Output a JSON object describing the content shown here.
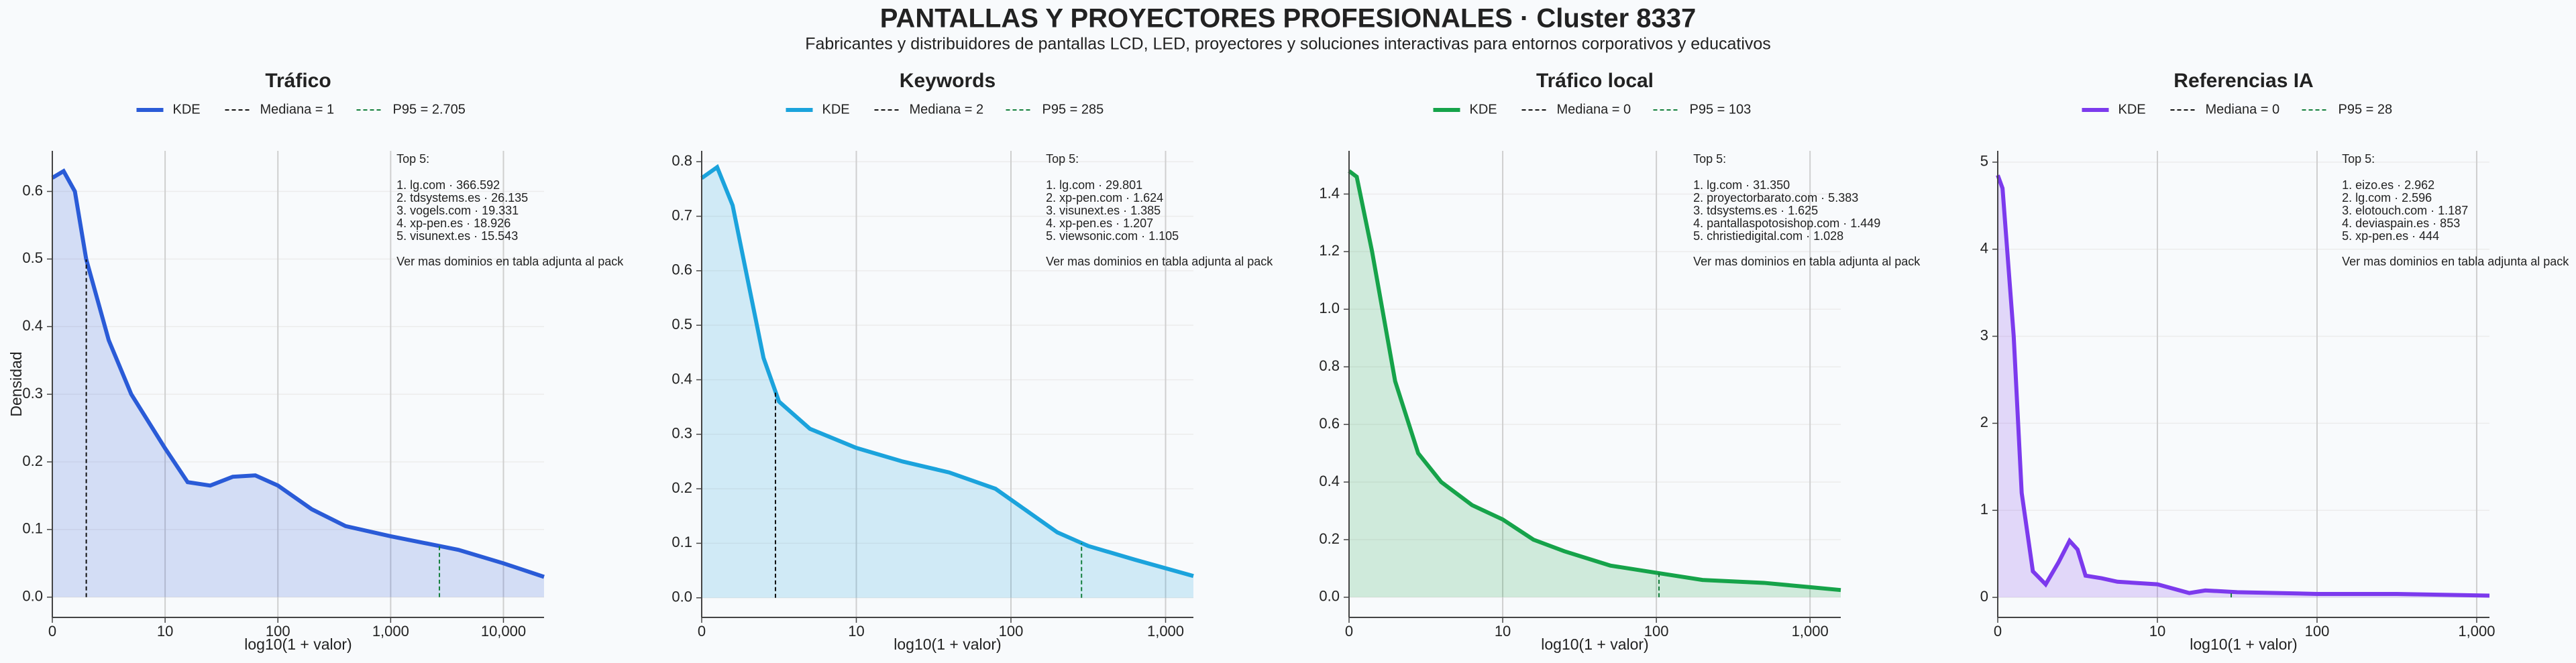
{
  "title": "PANTALLAS Y PROYECTORES PROFESIONALES · Cluster 8337",
  "subtitle": "Fabricantes y distribuidores de pantallas LCD, LED, proyectores y soluciones interactivas para entornos corporativos y educativos",
  "chart_data": [
    {
      "type": "area",
      "title": "Tráfico",
      "xlabel": "log10(1 + valor)",
      "ylabel": "Densidad",
      "x": [
        0,
        0.1,
        0.2,
        0.3,
        0.5,
        0.7,
        1,
        1.2,
        1.4,
        1.6,
        1.8,
        2,
        2.3,
        2.6,
        3,
        3.3,
        3.6,
        4,
        4.36
      ],
      "series": [
        {
          "name": "KDE",
          "color": "#2a5bd7",
          "values": [
            0.62,
            0.63,
            0.6,
            0.5,
            0.38,
            0.3,
            0.22,
            0.17,
            0.165,
            0.178,
            0.18,
            0.165,
            0.13,
            0.105,
            0.09,
            0.08,
            0.07,
            0.05,
            0.03
          ]
        }
      ],
      "median": 1,
      "median_label": "Mediana = 1",
      "p95": 2705,
      "p95_label": "P95 = 2.705",
      "xlim": [
        0,
        4.36
      ],
      "ylim": [
        -0.03,
        0.66
      ],
      "xticks": [
        {
          "value": 0,
          "label": "0"
        },
        {
          "value": 1,
          "label": "10"
        },
        {
          "value": 2,
          "label": "100"
        },
        {
          "value": 3,
          "label": "1,000"
        },
        {
          "value": 4,
          "label": "10,000"
        }
      ],
      "yticks": [
        {
          "value": 0,
          "label": "0.0"
        },
        0.1,
        0.2,
        0.3,
        0.4,
        0.5,
        0.6
      ],
      "annotation": {
        "title": "Top 5:",
        "lines": [
          "1. lg.com · 366.592",
          "2. tdsystems.es · 26.135",
          "3. vogels.com · 19.331",
          "4. xp-pen.es · 18.926",
          "5. visunext.es · 15.543"
        ],
        "note": "Ver mas dominios en tabla adjunta al pack"
      }
    },
    {
      "type": "area",
      "title": "Keywords",
      "xlabel": "log10(1 + valor)",
      "x": [
        0,
        0.1,
        0.2,
        0.3,
        0.4,
        0.5,
        0.7,
        1,
        1.3,
        1.6,
        1.9,
        2.1,
        2.3,
        2.5,
        2.8,
        3.18
      ],
      "series": [
        {
          "name": "KDE",
          "color": "#1ba3dc",
          "values": [
            0.77,
            0.79,
            0.72,
            0.58,
            0.44,
            0.36,
            0.31,
            0.275,
            0.25,
            0.23,
            0.2,
            0.16,
            0.12,
            0.095,
            0.07,
            0.04
          ]
        }
      ],
      "median": 2,
      "median_label": "Mediana = 2",
      "p95": 285,
      "p95_label": "P95 = 285",
      "xlim": [
        0,
        3.18
      ],
      "ylim": [
        -0.036,
        0.82
      ],
      "xticks": [
        {
          "value": 0,
          "label": "0"
        },
        {
          "value": 1,
          "label": "10"
        },
        {
          "value": 2,
          "label": "100"
        },
        {
          "value": 3,
          "label": "1,000"
        }
      ],
      "yticks": [
        {
          "value": 0,
          "label": "0.0"
        },
        0.1,
        0.2,
        0.3,
        0.4,
        0.5,
        0.6,
        0.7,
        0.8
      ],
      "annotation": {
        "title": "Top 5:",
        "lines": [
          "1. lg.com · 29.801",
          "2. xp-pen.com · 1.624",
          "3. visunext.es · 1.385",
          "4. xp-pen.es · 1.207",
          "5. viewsonic.com · 1.105"
        ],
        "note": "Ver mas dominios en tabla adjunta al pack"
      }
    },
    {
      "type": "area",
      "title": "Tráfico local",
      "xlabel": "log10(1 + valor)",
      "x": [
        0,
        0.05,
        0.15,
        0.3,
        0.45,
        0.6,
        0.8,
        1,
        1.2,
        1.4,
        1.7,
        2,
        2.3,
        2.7,
        3,
        3.2
      ],
      "series": [
        {
          "name": "KDE",
          "color": "#16a34a",
          "values": [
            1.48,
            1.46,
            1.2,
            0.75,
            0.5,
            0.4,
            0.32,
            0.27,
            0.2,
            0.16,
            0.11,
            0.085,
            0.06,
            0.05,
            0.035,
            0.025
          ]
        }
      ],
      "median": 0,
      "median_label": "Mediana = 0",
      "p95": 103,
      "p95_label": "P95 = 103",
      "xlim": [
        0,
        3.2
      ],
      "ylim": [
        -0.07,
        1.55
      ],
      "xticks": [
        {
          "value": 0,
          "label": "0"
        },
        {
          "value": 1,
          "label": "10"
        },
        {
          "value": 2,
          "label": "100"
        },
        {
          "value": 3,
          "label": "1,000"
        }
      ],
      "yticks": [
        {
          "value": 0,
          "label": "0.0"
        },
        0.2,
        0.4,
        0.6,
        0.8,
        {
          "value": 1,
          "label": "1.0"
        },
        1.2,
        1.4
      ],
      "annotation": {
        "title": "Top 5:",
        "lines": [
          "1. lg.com · 31.350",
          "2. proyectorbarato.com · 5.383",
          "3. tdsystems.es · 1.625",
          "4. pantallaspotosishop.com · 1.449",
          "5. christiedigital.com · 1.028"
        ],
        "note": "Ver mas dominios en tabla adjunta al pack"
      }
    },
    {
      "type": "area",
      "title": "Referencias IA",
      "xlabel": "log10(1 + valor)",
      "x": [
        0,
        0.03,
        0.1,
        0.15,
        0.22,
        0.3,
        0.38,
        0.45,
        0.5,
        0.55,
        0.65,
        0.75,
        1,
        1.2,
        1.3,
        1.5,
        2,
        2.5,
        3.08
      ],
      "series": [
        {
          "name": "KDE",
          "color": "#7c3aed",
          "values": [
            4.85,
            4.7,
            3,
            1.2,
            0.3,
            0.15,
            0.4,
            0.65,
            0.55,
            0.25,
            0.22,
            0.18,
            0.15,
            0.05,
            0.08,
            0.06,
            0.04,
            0.04,
            0.02
          ]
        }
      ],
      "median": 0,
      "median_label": "Mediana = 0",
      "p95": 28,
      "p95_label": "P95 = 28",
      "xlim": [
        0,
        3.08
      ],
      "ylim": [
        -0.23,
        5.13
      ],
      "xticks": [
        {
          "value": 0,
          "label": "0"
        },
        {
          "value": 1,
          "label": "10"
        },
        {
          "value": 2,
          "label": "100"
        },
        {
          "value": 3,
          "label": "1,000"
        }
      ],
      "yticks": [
        0,
        1,
        2,
        3,
        4,
        5
      ],
      "annotation": {
        "title": "Top 5:",
        "lines": [
          "1. eizo.es · 2.962",
          "2. lg.com · 2.596",
          "3. elotouch.com · 1.187",
          "4. deviaspain.es · 853",
          "5. xp-pen.es · 444"
        ],
        "note": "Ver mas dominios en tabla adjunta al pack"
      }
    }
  ]
}
